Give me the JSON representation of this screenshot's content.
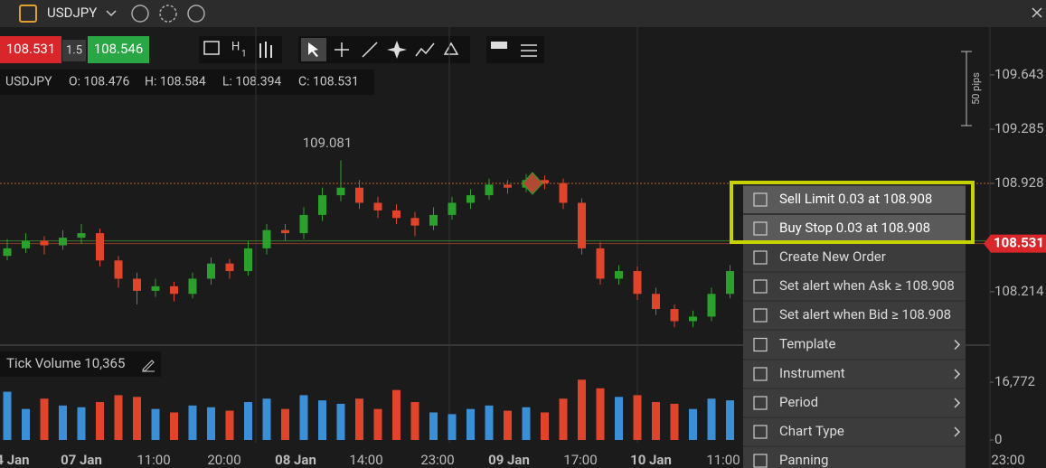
{
  "toolbar": {
    "symbol": "USDJPY",
    "sell": "108.531",
    "spread": "1.5",
    "buy": "108.546",
    "period_letter": "H",
    "period_sub": "1"
  },
  "ohlc": {
    "symbol": "USDJPY",
    "open": "O: 108.476",
    "high": "H: 108.584",
    "low": "L: 108.394",
    "close": "C: 108.531"
  },
  "chart": {
    "ylim": [
      107.874,
      109.958
    ],
    "yticks": [
      109.643,
      109.285,
      108.928,
      108.214
    ],
    "high_label": "109.081",
    "pips_label": "50 pips",
    "last_price": 108.531,
    "candles": [
      [
        108.45,
        108.56,
        108.42,
        108.5
      ],
      [
        108.5,
        108.6,
        108.47,
        108.55
      ],
      [
        108.55,
        108.58,
        108.46,
        108.52
      ],
      [
        108.52,
        108.62,
        108.49,
        108.57
      ],
      [
        108.57,
        108.66,
        108.53,
        108.6
      ],
      [
        108.6,
        108.63,
        108.38,
        108.42
      ],
      [
        108.42,
        108.45,
        108.24,
        108.3
      ],
      [
        108.3,
        108.34,
        108.13,
        108.22
      ],
      [
        108.22,
        108.3,
        108.18,
        108.25
      ],
      [
        108.25,
        108.28,
        108.15,
        108.2
      ],
      [
        108.2,
        108.34,
        108.17,
        108.3
      ],
      [
        108.3,
        108.44,
        108.26,
        108.4
      ],
      [
        108.4,
        108.43,
        108.3,
        108.35
      ],
      [
        108.35,
        108.55,
        108.32,
        108.5
      ],
      [
        108.5,
        108.66,
        108.46,
        108.62
      ],
      [
        108.62,
        108.66,
        108.55,
        108.6
      ],
      [
        108.6,
        108.77,
        108.56,
        108.72
      ],
      [
        108.72,
        108.9,
        108.68,
        108.85
      ],
      [
        108.85,
        109.08,
        108.81,
        108.9
      ],
      [
        108.9,
        108.95,
        108.76,
        108.8
      ],
      [
        108.8,
        108.84,
        108.7,
        108.75
      ],
      [
        108.75,
        108.79,
        108.66,
        108.7
      ],
      [
        108.7,
        108.74,
        108.58,
        108.65
      ],
      [
        108.65,
        108.77,
        108.62,
        108.72
      ],
      [
        108.72,
        108.84,
        108.69,
        108.8
      ],
      [
        108.8,
        108.89,
        108.76,
        108.85
      ],
      [
        108.85,
        108.96,
        108.82,
        108.92
      ],
      [
        108.92,
        108.95,
        108.86,
        108.9
      ],
      [
        108.9,
        108.99,
        108.87,
        108.95
      ],
      [
        108.95,
        108.98,
        108.89,
        108.93
      ],
      [
        108.93,
        108.96,
        108.76,
        108.8
      ],
      [
        108.8,
        108.83,
        108.46,
        108.5
      ],
      [
        108.5,
        108.54,
        108.26,
        108.3
      ],
      [
        108.3,
        108.39,
        108.26,
        108.35
      ],
      [
        108.35,
        108.38,
        108.16,
        108.2
      ],
      [
        108.2,
        108.24,
        108.06,
        108.1
      ],
      [
        108.1,
        108.13,
        107.98,
        108.02
      ],
      [
        108.02,
        108.09,
        107.98,
        108.05
      ],
      [
        108.05,
        108.24,
        108.02,
        108.2
      ],
      [
        108.2,
        108.39,
        108.17,
        108.35
      ]
    ],
    "time_labels": [
      "4 Jan",
      "07 Jan",
      "11:00",
      "20:00",
      "08 Jan",
      "14:00",
      "23:00",
      "09 Jan",
      "17:00",
      "10 Jan",
      "11:00",
      "23:00"
    ]
  },
  "volume": {
    "title": "Tick Volume 10,365",
    "ylim": [
      0,
      22800
    ],
    "yticks": [
      {
        "value": 16772,
        "label": "16,772"
      },
      0
    ],
    "values": [
      14000,
      9000,
      12000,
      10000,
      9500,
      11000,
      13000,
      12500,
      9000,
      8000,
      10000,
      9500,
      8500,
      11000,
      12000,
      9000,
      13000,
      11500,
      10500,
      12000,
      9000,
      14500,
      11000,
      8000,
      7500,
      9000,
      10000,
      8500,
      9500,
      8000,
      12000,
      17500,
      15000,
      12500,
      13000,
      11000,
      10500,
      9000,
      12000,
      11500
    ]
  },
  "menu": {
    "items": [
      "Sell Limit 0.03 at 108.908",
      "Buy Stop 0.03 at 108.908",
      "Create New Order",
      "Set alert when Ask ≥ 108.908",
      "Set alert when Bid ≥ 108.908",
      "Template",
      "Instrument",
      "Period",
      "Chart Type",
      "Panning"
    ]
  }
}
